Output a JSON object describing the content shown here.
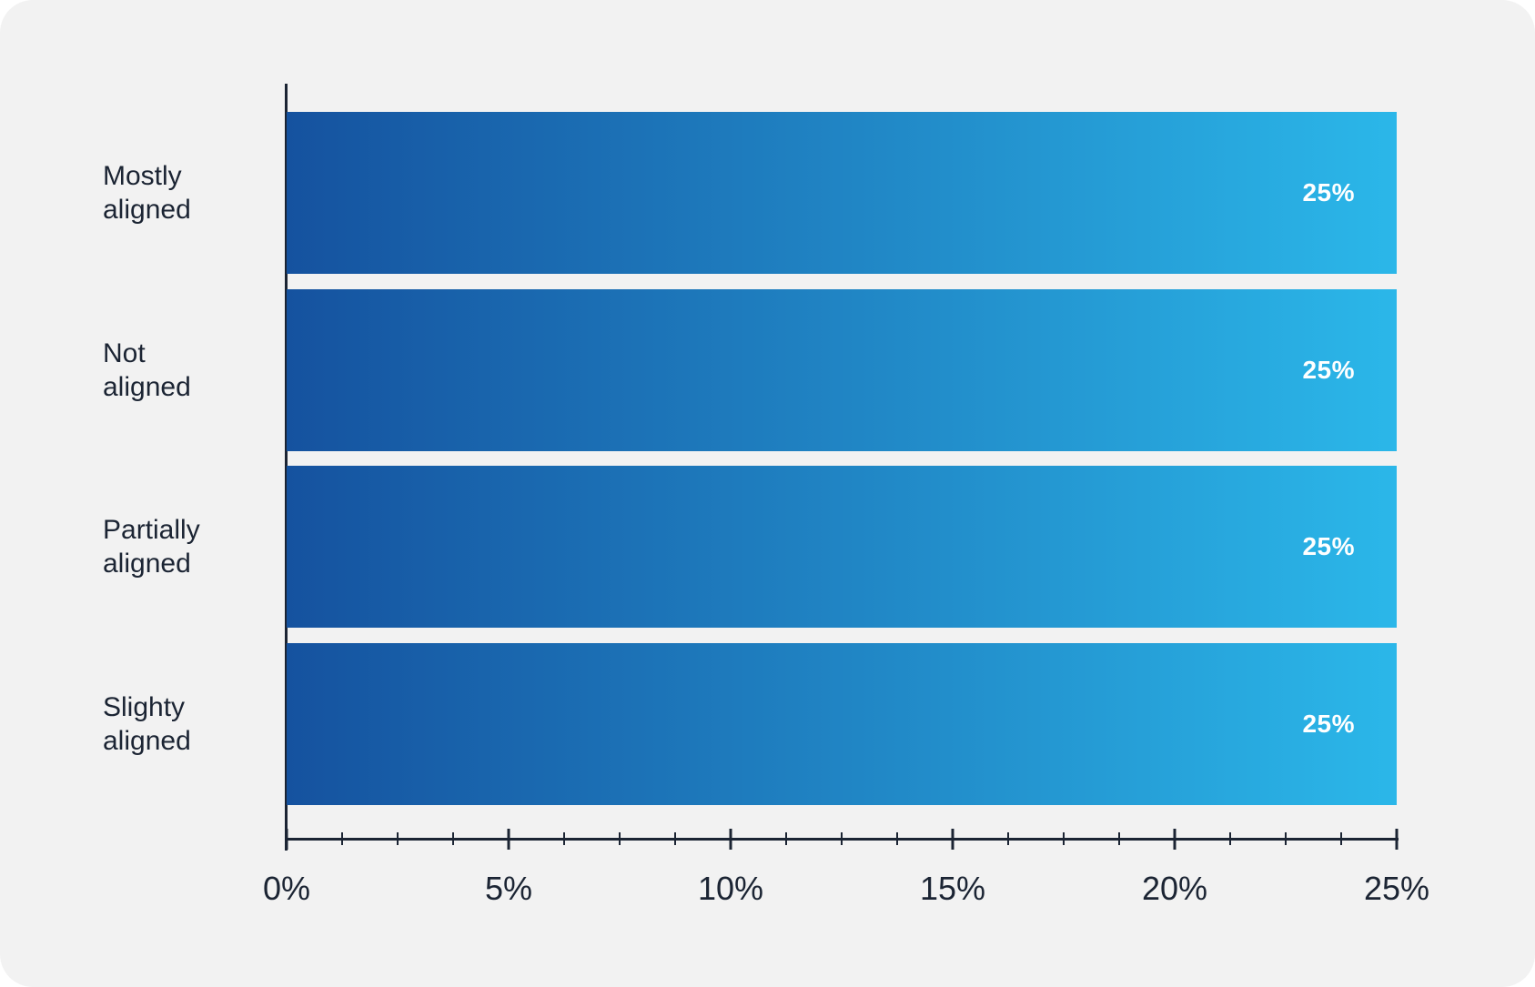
{
  "colors": {
    "card_background": "#F2F2F2",
    "page_background": "#FFFFFF",
    "text": "#1B2433",
    "bar_gradient_start": "#15529F",
    "bar_gradient_end": "#2BB7E9",
    "value_label": "#FFFFFF"
  },
  "chart_data": {
    "type": "bar",
    "orientation": "horizontal",
    "title": "",
    "categories": [
      "Mostly aligned",
      "Not aligned",
      "Partially aligned",
      "Slighty aligned"
    ],
    "values": [
      25,
      25,
      25,
      25
    ],
    "value_labels": [
      "25%",
      "25%",
      "25%",
      "25%"
    ],
    "xlim": [
      0,
      25
    ],
    "x_major_tick_values": [
      0,
      5,
      10,
      15,
      20,
      25
    ],
    "x_tick_labels": [
      "0%",
      "5%",
      "10%",
      "15%",
      "20%",
      "25%"
    ],
    "x_minor_tick_step": 1.25,
    "grid": false,
    "legend": false
  },
  "category_label_lines": [
    [
      "Mostly",
      "aligned"
    ],
    [
      "Not",
      "aligned"
    ],
    [
      "Partially",
      "aligned"
    ],
    [
      "Slighty",
      "aligned"
    ]
  ]
}
